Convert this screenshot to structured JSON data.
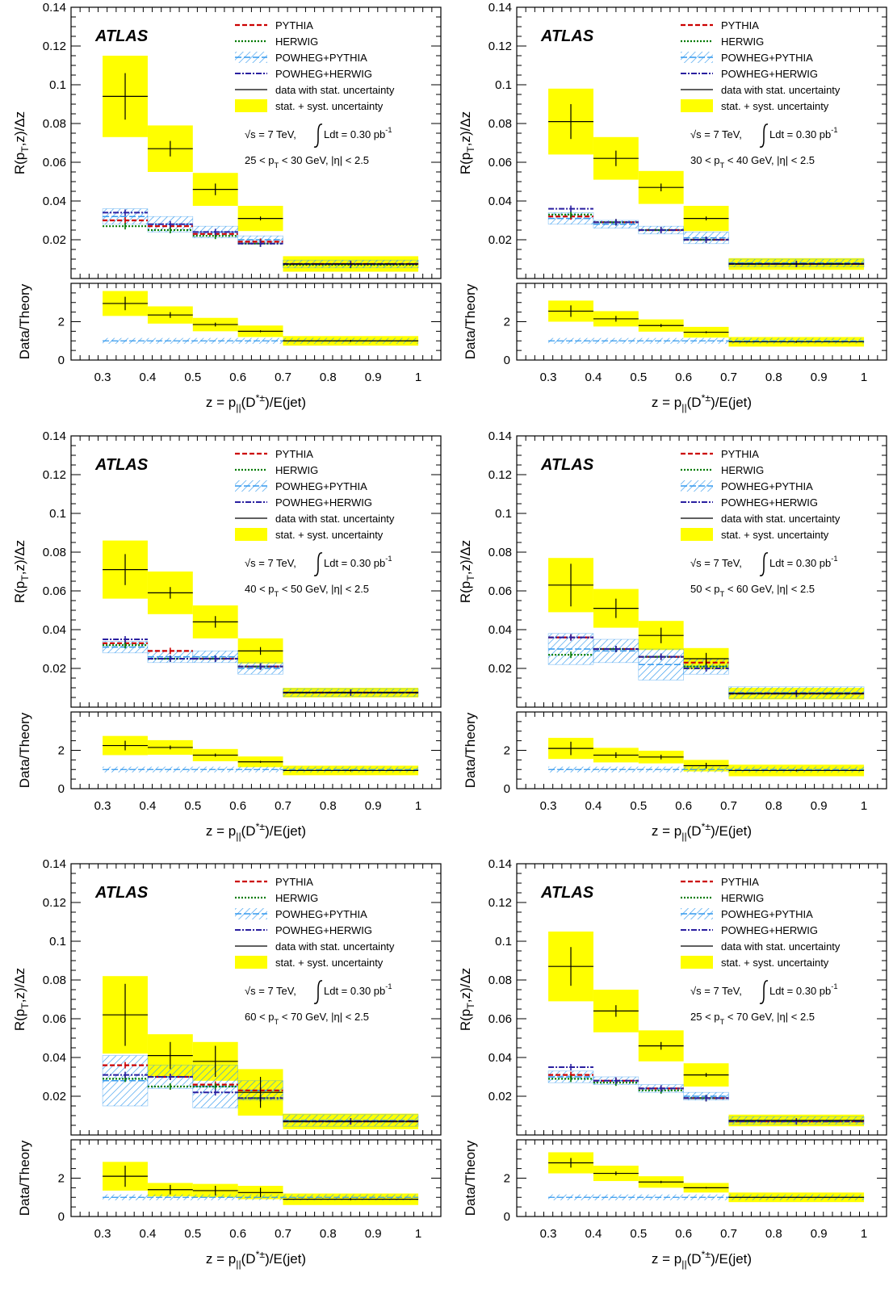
{
  "common": {
    "experiment": "ATLAS",
    "legend": [
      "PYTHIA",
      "HERWIG",
      "POWHEG+PYTHIA",
      "POWHEG+HERWIG",
      "data with stat. uncertainty",
      "stat. + syst. uncertainty"
    ],
    "energy": "√s = 7 TeV,",
    "lumi": "Ldt = 0.30 pb",
    "lumi_exp": "-1",
    "colors": {
      "pythia": "#cc0000",
      "herwig": "#007a00",
      "powheg_pythia": "#3399ee",
      "powheg_herwig": "#2a1fa0",
      "band": "#ffff00"
    }
  },
  "chart_data": [
    {
      "type": "bar",
      "cut": "25 < p_T < 30 GeV, |η| < 2.5",
      "xlabel": "z = p_||(D*±)/E(jet)",
      "ylabel": "R(p_T,z)/Δz",
      "ratio_ylabel": "Data/Theory",
      "xlim": [
        0.23,
        1.05
      ],
      "ylim": [
        0,
        0.14
      ],
      "ratio_ylim": [
        0,
        4
      ],
      "x_ticks": [
        "0.3",
        "0.4",
        "0.5",
        "0.6",
        "0.7",
        "0.8",
        "0.9",
        "1"
      ],
      "y_ticks": [
        "0.02",
        "0.04",
        "0.06",
        "0.08",
        "0.1",
        "0.12",
        "0.14"
      ],
      "ratio_ticks": [
        "0",
        "2"
      ],
      "bins": [
        [
          0.3,
          0.4
        ],
        [
          0.4,
          0.5
        ],
        [
          0.5,
          0.6
        ],
        [
          0.6,
          0.7
        ],
        [
          0.7,
          1.0
        ]
      ],
      "data": [
        0.094,
        0.067,
        0.046,
        0.031,
        0.0075
      ],
      "data_stat": [
        0.012,
        0.004,
        0.003,
        0.001,
        0.0005
      ],
      "data_total": [
        0.021,
        0.012,
        0.0085,
        0.0065,
        0.004
      ],
      "pythia": [
        0.03,
        0.027,
        0.023,
        0.019,
        0.0075
      ],
      "herwig": [
        0.027,
        0.025,
        0.022,
        0.018,
        0.007
      ],
      "powheg_pythia": [
        0.032,
        0.028,
        0.024,
        0.02,
        0.0075
      ],
      "powheg_pythia_unc": [
        0.004,
        0.004,
        0.003,
        0.002,
        0.002
      ],
      "powheg_herwig": [
        0.034,
        0.028,
        0.024,
        0.018,
        0.0075
      ],
      "ratio": [
        2.95,
        2.35,
        1.85,
        1.5,
        1.0
      ],
      "ratio_stat": [
        0.35,
        0.15,
        0.1,
        0.05,
        0.05
      ],
      "ratio_total": [
        0.65,
        0.45,
        0.35,
        0.3,
        0.25
      ]
    },
    {
      "type": "bar",
      "cut": "30 < p_T < 40 GeV, |η| < 2.5",
      "xlabel": "z = p_||(D*±)/E(jet)",
      "ylabel": "R(p_T,z)/Δz",
      "ratio_ylabel": "Data/Theory",
      "xlim": [
        0.23,
        1.05
      ],
      "ylim": [
        0,
        0.14
      ],
      "ratio_ylim": [
        0,
        4
      ],
      "x_ticks": [
        "0.3",
        "0.4",
        "0.5",
        "0.6",
        "0.7",
        "0.8",
        "0.9",
        "1"
      ],
      "y_ticks": [
        "0.02",
        "0.04",
        "0.06",
        "0.08",
        "0.1",
        "0.12",
        "0.14"
      ],
      "ratio_ticks": [
        "0",
        "2"
      ],
      "bins": [
        [
          0.3,
          0.4
        ],
        [
          0.4,
          0.5
        ],
        [
          0.5,
          0.6
        ],
        [
          0.6,
          0.7
        ],
        [
          0.7,
          1.0
        ]
      ],
      "data": [
        0.081,
        0.062,
        0.047,
        0.031,
        0.0075
      ],
      "data_stat": [
        0.009,
        0.004,
        0.002,
        0.001,
        0.0005
      ],
      "data_total": [
        0.017,
        0.011,
        0.0085,
        0.0065,
        0.003
      ],
      "pythia": [
        0.032,
        0.029,
        0.025,
        0.02,
        0.0075
      ],
      "herwig": [
        0.033,
        0.029,
        0.025,
        0.02,
        0.0075
      ],
      "powheg_pythia": [
        0.031,
        0.028,
        0.025,
        0.021,
        0.008
      ],
      "powheg_pythia_unc": [
        0.003,
        0.002,
        0.002,
        0.003,
        0.002
      ],
      "powheg_herwig": [
        0.036,
        0.029,
        0.025,
        0.02,
        0.0075
      ],
      "ratio": [
        2.55,
        2.15,
        1.8,
        1.45,
        0.95
      ],
      "ratio_stat": [
        0.3,
        0.15,
        0.08,
        0.05,
        0.05
      ],
      "ratio_total": [
        0.55,
        0.4,
        0.32,
        0.28,
        0.25
      ]
    },
    {
      "type": "bar",
      "cut": "40 < p_T < 50 GeV, |η| < 2.5",
      "xlabel": "z = p_||(D*±)/E(jet)",
      "ylabel": "R(p_T,z)/Δz",
      "ratio_ylabel": "Data/Theory",
      "xlim": [
        0.23,
        1.05
      ],
      "ylim": [
        0,
        0.14
      ],
      "ratio_ylim": [
        0,
        4
      ],
      "x_ticks": [
        "0.3",
        "0.4",
        "0.5",
        "0.6",
        "0.7",
        "0.8",
        "0.9",
        "1"
      ],
      "y_ticks": [
        "0.02",
        "0.04",
        "0.06",
        "0.08",
        "0.1",
        "0.12",
        "0.14"
      ],
      "ratio_ticks": [
        "0",
        "2"
      ],
      "bins": [
        [
          0.3,
          0.4
        ],
        [
          0.4,
          0.5
        ],
        [
          0.5,
          0.6
        ],
        [
          0.6,
          0.7
        ],
        [
          0.7,
          1.0
        ]
      ],
      "data": [
        0.071,
        0.059,
        0.044,
        0.029,
        0.0075
      ],
      "data_stat": [
        0.008,
        0.003,
        0.003,
        0.002,
        0.0005
      ],
      "data_total": [
        0.015,
        0.011,
        0.0085,
        0.0065,
        0.0025
      ],
      "pythia": [
        0.033,
        0.029,
        0.025,
        0.021,
        0.0075
      ],
      "herwig": [
        0.032,
        0.025,
        0.025,
        0.021,
        0.0075
      ],
      "powheg_pythia": [
        0.031,
        0.026,
        0.026,
        0.02,
        0.0075
      ],
      "powheg_pythia_unc": [
        0.003,
        0.003,
        0.003,
        0.003,
        0.002
      ],
      "powheg_herwig": [
        0.035,
        0.025,
        0.025,
        0.021,
        0.0075
      ],
      "ratio": [
        2.25,
        2.15,
        1.75,
        1.4,
        0.95
      ],
      "ratio_stat": [
        0.25,
        0.1,
        0.08,
        0.05,
        0.05
      ],
      "ratio_total": [
        0.5,
        0.38,
        0.32,
        0.28,
        0.25
      ]
    },
    {
      "type": "bar",
      "cut": "50 < p_T < 60 GeV, |η| < 2.5",
      "xlabel": "z = p_||(D*±)/E(jet)",
      "ylabel": "R(p_T,z)/Δz",
      "ratio_ylabel": "Data/Theory",
      "xlim": [
        0.23,
        1.05
      ],
      "ylim": [
        0,
        0.14
      ],
      "ratio_ylim": [
        0,
        4
      ],
      "x_ticks": [
        "0.3",
        "0.4",
        "0.5",
        "0.6",
        "0.7",
        "0.8",
        "0.9",
        "1"
      ],
      "y_ticks": [
        "0.02",
        "0.04",
        "0.06",
        "0.08",
        "0.1",
        "0.12",
        "0.14"
      ],
      "ratio_ticks": [
        "0",
        "2"
      ],
      "bins": [
        [
          0.3,
          0.4
        ],
        [
          0.4,
          0.5
        ],
        [
          0.5,
          0.6
        ],
        [
          0.6,
          0.7
        ],
        [
          0.7,
          1.0
        ]
      ],
      "data": [
        0.063,
        0.051,
        0.037,
        0.025,
        0.007
      ],
      "data_stat": [
        0.011,
        0.005,
        0.004,
        0.003,
        0.0005
      ],
      "data_total": [
        0.014,
        0.01,
        0.0075,
        0.0055,
        0.003
      ],
      "pythia": [
        0.036,
        0.03,
        0.026,
        0.023,
        0.007
      ],
      "herwig": [
        0.027,
        0.03,
        0.026,
        0.021,
        0.007
      ],
      "powheg_pythia": [
        0.03,
        0.029,
        0.022,
        0.021,
        0.0075
      ],
      "powheg_pythia_unc": [
        0.008,
        0.006,
        0.008,
        0.004,
        0.003
      ],
      "powheg_herwig": [
        0.036,
        0.03,
        0.026,
        0.02,
        0.007
      ],
      "ratio": [
        2.1,
        1.75,
        1.65,
        1.2,
        0.95
      ],
      "ratio_stat": [
        0.35,
        0.15,
        0.12,
        0.15,
        0.05
      ],
      "ratio_total": [
        0.55,
        0.38,
        0.33,
        0.3,
        0.3
      ]
    },
    {
      "type": "bar",
      "cut": "60 < p_T < 70 GeV, |η| < 2.5",
      "xlabel": "z = p_||(D*±)/E(jet)",
      "ylabel": "R(p_T,z)/Δz",
      "ratio_ylabel": "Data/Theory",
      "xlim": [
        0.23,
        1.05
      ],
      "ylim": [
        0,
        0.14
      ],
      "ratio_ylim": [
        0,
        4
      ],
      "x_ticks": [
        "0.3",
        "0.4",
        "0.5",
        "0.6",
        "0.7",
        "0.8",
        "0.9",
        "1"
      ],
      "y_ticks": [
        "0.02",
        "0.04",
        "0.06",
        "0.08",
        "0.1",
        "0.12",
        "0.14"
      ],
      "ratio_ticks": [
        "0",
        "2"
      ],
      "bins": [
        [
          0.3,
          0.4
        ],
        [
          0.4,
          0.5
        ],
        [
          0.5,
          0.6
        ],
        [
          0.6,
          0.7
        ],
        [
          0.7,
          1.0
        ]
      ],
      "data": [
        0.062,
        0.041,
        0.038,
        0.022,
        0.007
      ],
      "data_stat": [
        0.016,
        0.007,
        0.008,
        0.008,
        0.0005
      ],
      "data_total": [
        0.02,
        0.011,
        0.01,
        0.012,
        0.004
      ],
      "pythia": [
        0.036,
        0.03,
        0.026,
        0.023,
        0.007
      ],
      "herwig": [
        0.029,
        0.025,
        0.025,
        0.019,
        0.007
      ],
      "powheg_pythia": [
        0.028,
        0.03,
        0.025,
        0.023,
        0.0075
      ],
      "powheg_pythia_unc": [
        0.013,
        0.006,
        0.011,
        0.005,
        0.003
      ],
      "powheg_herwig": [
        0.031,
        0.03,
        0.022,
        0.019,
        0.007
      ],
      "ratio": [
        2.1,
        1.4,
        1.35,
        1.25,
        0.9
      ],
      "ratio_stat": [
        0.55,
        0.25,
        0.25,
        0.25,
        0.05
      ],
      "ratio_total": [
        0.75,
        0.35,
        0.35,
        0.35,
        0.3
      ]
    },
    {
      "type": "bar",
      "cut": "25 < p_T < 70 GeV, |η| < 2.5",
      "xlabel": "z = p_||(D*±)/E(jet)",
      "ylabel": "R(p_T,z)/Δz",
      "ratio_ylabel": "Data/Theory",
      "xlim": [
        0.23,
        1.05
      ],
      "ylim": [
        0,
        0.14
      ],
      "ratio_ylim": [
        0,
        4
      ],
      "x_ticks": [
        "0.3",
        "0.4",
        "0.5",
        "0.6",
        "0.7",
        "0.8",
        "0.9",
        "1"
      ],
      "y_ticks": [
        "0.02",
        "0.04",
        "0.06",
        "0.08",
        "0.1",
        "0.12",
        "0.14"
      ],
      "ratio_ticks": [
        "0",
        "2"
      ],
      "bins": [
        [
          0.3,
          0.4
        ],
        [
          0.4,
          0.5
        ],
        [
          0.5,
          0.6
        ],
        [
          0.6,
          0.7
        ],
        [
          0.7,
          1.0
        ]
      ],
      "data": [
        0.087,
        0.064,
        0.046,
        0.031,
        0.0075
      ],
      "data_stat": [
        0.01,
        0.003,
        0.002,
        0.001,
        0.0003
      ],
      "data_total": [
        0.018,
        0.011,
        0.008,
        0.006,
        0.003
      ],
      "pythia": [
        0.031,
        0.028,
        0.024,
        0.019,
        0.007
      ],
      "herwig": [
        0.029,
        0.027,
        0.023,
        0.019,
        0.007
      ],
      "powheg_pythia": [
        0.03,
        0.028,
        0.024,
        0.02,
        0.0075
      ],
      "powheg_pythia_unc": [
        0.003,
        0.002,
        0.002,
        0.002,
        0.002
      ],
      "powheg_herwig": [
        0.035,
        0.028,
        0.024,
        0.019,
        0.007
      ],
      "ratio": [
        2.8,
        2.25,
        1.8,
        1.5,
        1.0
      ],
      "ratio_stat": [
        0.25,
        0.1,
        0.06,
        0.04,
        0.03
      ],
      "ratio_total": [
        0.55,
        0.4,
        0.3,
        0.25,
        0.25
      ]
    }
  ]
}
